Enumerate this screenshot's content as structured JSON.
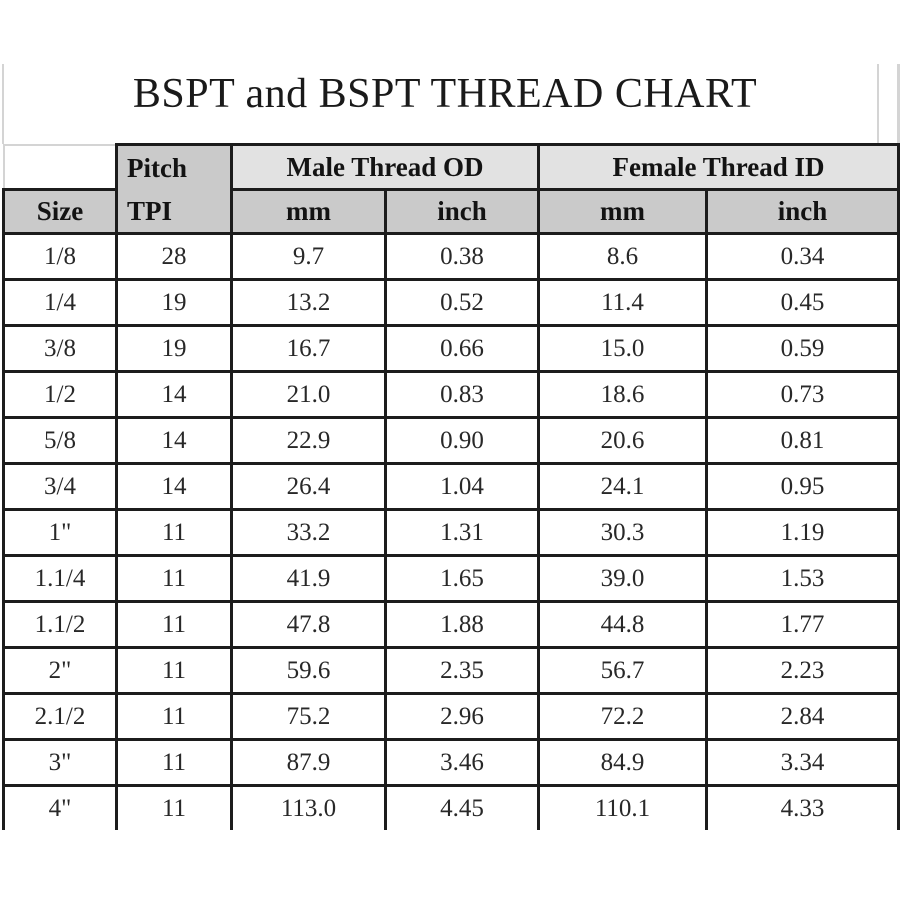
{
  "title": "BSPT and BSPT THREAD CHART",
  "table": {
    "corner": "",
    "headers": {
      "size": "Size",
      "pitch_line1": "Pitch",
      "pitch_line2": "TPI",
      "male_group": "Male Thread OD",
      "female_group": "Female Thread ID",
      "male_mm": "mm",
      "male_inch": "inch",
      "female_mm": "mm",
      "female_inch": "inch"
    },
    "rows": [
      [
        "1/8",
        "28",
        "9.7",
        "0.38",
        "8.6",
        "0.34"
      ],
      [
        "1/4",
        "19",
        "13.2",
        "0.52",
        "11.4",
        "0.45"
      ],
      [
        "3/8",
        "19",
        "16.7",
        "0.66",
        "15.0",
        "0.59"
      ],
      [
        "1/2",
        "14",
        "21.0",
        "0.83",
        "18.6",
        "0.73"
      ],
      [
        "5/8",
        "14",
        "22.9",
        "0.90",
        "20.6",
        "0.81"
      ],
      [
        "3/4",
        "14",
        "26.4",
        "1.04",
        "24.1",
        "0.95"
      ],
      [
        "1\"",
        "11",
        "33.2",
        "1.31",
        "30.3",
        "1.19"
      ],
      [
        "1.1/4",
        "11",
        "41.9",
        "1.65",
        "39.0",
        "1.53"
      ],
      [
        "1.1/2",
        "11",
        "47.8",
        "1.88",
        "44.8",
        "1.77"
      ],
      [
        "2\"",
        "11",
        "59.6",
        "2.35",
        "56.7",
        "2.23"
      ],
      [
        "2.1/2",
        "11",
        "75.2",
        "2.96",
        "72.2",
        "2.84"
      ],
      [
        "3\"",
        "11",
        "87.9",
        "3.46",
        "84.9",
        "3.34"
      ],
      [
        "4\"",
        "11",
        "113.0",
        "4.45",
        "110.1",
        "4.33"
      ]
    ]
  },
  "chart_data": {
    "type": "table",
    "title": "BSPT and BSPT THREAD CHART",
    "columns": [
      "Size",
      "Pitch TPI",
      "Male Thread OD mm",
      "Male Thread OD inch",
      "Female Thread ID mm",
      "Female Thread ID inch"
    ],
    "rows": [
      [
        "1/8",
        28,
        9.7,
        0.38,
        8.6,
        0.34
      ],
      [
        "1/4",
        19,
        13.2,
        0.52,
        11.4,
        0.45
      ],
      [
        "3/8",
        19,
        16.7,
        0.66,
        15.0,
        0.59
      ],
      [
        "1/2",
        14,
        21.0,
        0.83,
        18.6,
        0.73
      ],
      [
        "5/8",
        14,
        22.9,
        0.9,
        20.6,
        0.81
      ],
      [
        "3/4",
        14,
        26.4,
        1.04,
        24.1,
        0.95
      ],
      [
        "1\"",
        11,
        33.2,
        1.31,
        30.3,
        1.19
      ],
      [
        "1.1/4",
        11,
        41.9,
        1.65,
        39.0,
        1.53
      ],
      [
        "1.1/2",
        11,
        47.8,
        1.88,
        44.8,
        1.77
      ],
      [
        "2\"",
        11,
        59.6,
        2.35,
        56.7,
        2.23
      ],
      [
        "2.1/2",
        11,
        75.2,
        2.96,
        72.2,
        2.84
      ],
      [
        "3\"",
        11,
        87.9,
        3.46,
        84.9,
        3.34
      ],
      [
        "4\"",
        11,
        113.0,
        4.45,
        110.1,
        4.33
      ]
    ]
  },
  "colors": {
    "border": "#1c1c1c",
    "header_group_bg": "#e2e2e2",
    "header_sub_bg": "#cacaca",
    "faint_line": "#d4d4d4",
    "text": "#1a1a1a"
  }
}
